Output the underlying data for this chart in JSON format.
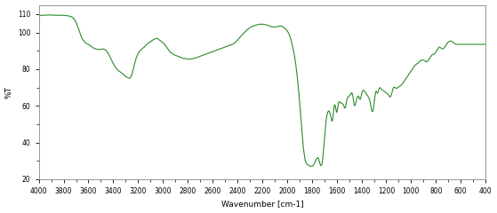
{
  "title": "",
  "xlabel": "Wavenumber [cm-1]",
  "ylabel": "%T",
  "xlim": [
    4000,
    400
  ],
  "ylim": [
    20,
    115
  ],
  "yticks": [
    20,
    40,
    60,
    80,
    100,
    110
  ],
  "xticks": [
    4000,
    3800,
    3600,
    3400,
    3200,
    3000,
    2800,
    2600,
    2400,
    2200,
    2000,
    1800,
    1600,
    1400,
    1200,
    1000,
    800,
    600,
    400
  ],
  "line_color": "#2a8a2a",
  "bg_color": "#ffffff",
  "linewidth": 0.8,
  "spectrum": [
    [
      4000,
      109.0
    ],
    [
      3990,
      109.2
    ],
    [
      3980,
      109.3
    ],
    [
      3970,
      109.4
    ],
    [
      3960,
      109.4
    ],
    [
      3950,
      109.5
    ],
    [
      3940,
      109.5
    ],
    [
      3930,
      109.5
    ],
    [
      3920,
      109.5
    ],
    [
      3910,
      109.5
    ],
    [
      3900,
      109.5
    ],
    [
      3890,
      109.5
    ],
    [
      3880,
      109.4
    ],
    [
      3870,
      109.4
    ],
    [
      3860,
      109.3
    ],
    [
      3850,
      109.3
    ],
    [
      3840,
      109.3
    ],
    [
      3830,
      109.4
    ],
    [
      3820,
      109.4
    ],
    [
      3810,
      109.4
    ],
    [
      3800,
      109.3
    ],
    [
      3790,
      109.3
    ],
    [
      3780,
      109.2
    ],
    [
      3770,
      109.1
    ],
    [
      3760,
      109.0
    ],
    [
      3750,
      108.9
    ],
    [
      3740,
      108.7
    ],
    [
      3730,
      108.3
    ],
    [
      3720,
      107.7
    ],
    [
      3710,
      106.8
    ],
    [
      3700,
      105.5
    ],
    [
      3690,
      104.0
    ],
    [
      3680,
      102.0
    ],
    [
      3670,
      100.0
    ],
    [
      3660,
      98.0
    ],
    [
      3650,
      96.5
    ],
    [
      3640,
      95.5
    ],
    [
      3630,
      94.8
    ],
    [
      3620,
      94.2
    ],
    [
      3610,
      93.8
    ],
    [
      3600,
      93.5
    ],
    [
      3590,
      93.0
    ],
    [
      3580,
      92.5
    ],
    [
      3570,
      92.0
    ],
    [
      3560,
      91.5
    ],
    [
      3550,
      91.2
    ],
    [
      3540,
      91.0
    ],
    [
      3530,
      90.8
    ],
    [
      3520,
      90.7
    ],
    [
      3510,
      90.7
    ],
    [
      3500,
      90.8
    ],
    [
      3490,
      91.0
    ],
    [
      3480,
      91.0
    ],
    [
      3470,
      90.8
    ],
    [
      3460,
      90.3
    ],
    [
      3450,
      89.5
    ],
    [
      3440,
      88.5
    ],
    [
      3430,
      87.2
    ],
    [
      3420,
      85.8
    ],
    [
      3410,
      84.3
    ],
    [
      3400,
      83.0
    ],
    [
      3390,
      81.8
    ],
    [
      3380,
      80.8
    ],
    [
      3370,
      80.0
    ],
    [
      3360,
      79.3
    ],
    [
      3350,
      78.8
    ],
    [
      3340,
      78.3
    ],
    [
      3330,
      77.8
    ],
    [
      3320,
      77.2
    ],
    [
      3310,
      76.6
    ],
    [
      3300,
      76.0
    ],
    [
      3290,
      75.6
    ],
    [
      3280,
      75.2
    ],
    [
      3270,
      75.0
    ],
    [
      3260,
      75.5
    ],
    [
      3250,
      77.0
    ],
    [
      3240,
      79.5
    ],
    [
      3230,
      82.5
    ],
    [
      3220,
      85.0
    ],
    [
      3210,
      87.0
    ],
    [
      3200,
      88.5
    ],
    [
      3190,
      89.5
    ],
    [
      3180,
      90.2
    ],
    [
      3170,
      91.0
    ],
    [
      3160,
      91.5
    ],
    [
      3150,
      92.0
    ],
    [
      3140,
      92.8
    ],
    [
      3130,
      93.5
    ],
    [
      3120,
      94.0
    ],
    [
      3110,
      94.5
    ],
    [
      3100,
      95.0
    ],
    [
      3090,
      95.5
    ],
    [
      3080,
      96.0
    ],
    [
      3070,
      96.3
    ],
    [
      3060,
      96.5
    ],
    [
      3050,
      96.8
    ],
    [
      3040,
      96.5
    ],
    [
      3030,
      96.0
    ],
    [
      3020,
      95.5
    ],
    [
      3010,
      95.0
    ],
    [
      3000,
      94.5
    ],
    [
      2990,
      93.8
    ],
    [
      2980,
      93.0
    ],
    [
      2970,
      92.0
    ],
    [
      2960,
      91.0
    ],
    [
      2950,
      90.0
    ],
    [
      2940,
      89.2
    ],
    [
      2930,
      88.7
    ],
    [
      2920,
      88.2
    ],
    [
      2910,
      87.8
    ],
    [
      2900,
      87.5
    ],
    [
      2890,
      87.3
    ],
    [
      2880,
      87.0
    ],
    [
      2870,
      86.8
    ],
    [
      2860,
      86.5
    ],
    [
      2850,
      86.3
    ],
    [
      2840,
      86.0
    ],
    [
      2830,
      85.8
    ],
    [
      2820,
      85.7
    ],
    [
      2810,
      85.6
    ],
    [
      2800,
      85.5
    ],
    [
      2790,
      85.5
    ],
    [
      2780,
      85.5
    ],
    [
      2770,
      85.6
    ],
    [
      2760,
      85.7
    ],
    [
      2750,
      85.8
    ],
    [
      2740,
      86.0
    ],
    [
      2730,
      86.2
    ],
    [
      2720,
      86.5
    ],
    [
      2710,
      86.8
    ],
    [
      2700,
      87.0
    ],
    [
      2690,
      87.3
    ],
    [
      2680,
      87.5
    ],
    [
      2670,
      87.8
    ],
    [
      2660,
      88.0
    ],
    [
      2650,
      88.3
    ],
    [
      2640,
      88.5
    ],
    [
      2630,
      88.8
    ],
    [
      2620,
      89.0
    ],
    [
      2610,
      89.3
    ],
    [
      2600,
      89.5
    ],
    [
      2590,
      89.8
    ],
    [
      2580,
      90.0
    ],
    [
      2570,
      90.3
    ],
    [
      2560,
      90.5
    ],
    [
      2550,
      90.8
    ],
    [
      2540,
      91.0
    ],
    [
      2530,
      91.3
    ],
    [
      2520,
      91.5
    ],
    [
      2510,
      91.8
    ],
    [
      2500,
      92.0
    ],
    [
      2490,
      92.3
    ],
    [
      2480,
      92.5
    ],
    [
      2470,
      92.8
    ],
    [
      2460,
      93.0
    ],
    [
      2450,
      93.3
    ],
    [
      2440,
      93.5
    ],
    [
      2430,
      93.8
    ],
    [
      2420,
      94.3
    ],
    [
      2410,
      95.0
    ],
    [
      2400,
      95.8
    ],
    [
      2390,
      96.5
    ],
    [
      2380,
      97.3
    ],
    [
      2370,
      98.0
    ],
    [
      2360,
      98.8
    ],
    [
      2350,
      99.5
    ],
    [
      2340,
      100.2
    ],
    [
      2330,
      100.8
    ],
    [
      2320,
      101.5
    ],
    [
      2310,
      102.0
    ],
    [
      2300,
      102.5
    ],
    [
      2290,
      103.0
    ],
    [
      2280,
      103.3
    ],
    [
      2270,
      103.5
    ],
    [
      2260,
      103.8
    ],
    [
      2250,
      104.0
    ],
    [
      2240,
      104.2
    ],
    [
      2230,
      104.3
    ],
    [
      2220,
      104.5
    ],
    [
      2210,
      104.5
    ],
    [
      2200,
      104.5
    ],
    [
      2190,
      104.5
    ],
    [
      2180,
      104.3
    ],
    [
      2170,
      104.2
    ],
    [
      2160,
      104.0
    ],
    [
      2150,
      103.8
    ],
    [
      2140,
      103.5
    ],
    [
      2130,
      103.3
    ],
    [
      2120,
      103.0
    ],
    [
      2110,
      103.0
    ],
    [
      2100,
      103.0
    ],
    [
      2090,
      103.0
    ],
    [
      2080,
      103.2
    ],
    [
      2070,
      103.3
    ],
    [
      2060,
      103.5
    ],
    [
      2050,
      103.5
    ],
    [
      2040,
      103.3
    ],
    [
      2030,
      103.0
    ],
    [
      2020,
      102.5
    ],
    [
      2010,
      101.8
    ],
    [
      2000,
      101.0
    ],
    [
      1990,
      100.0
    ],
    [
      1980,
      98.5
    ],
    [
      1970,
      96.5
    ],
    [
      1960,
      94.0
    ],
    [
      1950,
      91.0
    ],
    [
      1940,
      87.5
    ],
    [
      1930,
      83.0
    ],
    [
      1920,
      77.5
    ],
    [
      1910,
      71.0
    ],
    [
      1900,
      63.5
    ],
    [
      1890,
      55.0
    ],
    [
      1880,
      46.0
    ],
    [
      1870,
      38.0
    ],
    [
      1860,
      33.0
    ],
    [
      1855,
      30.5
    ],
    [
      1850,
      29.5
    ],
    [
      1845,
      28.8
    ],
    [
      1840,
      28.3
    ],
    [
      1835,
      28.0
    ],
    [
      1830,
      27.8
    ],
    [
      1825,
      27.5
    ],
    [
      1820,
      27.3
    ],
    [
      1815,
      27.2
    ],
    [
      1810,
      27.0
    ],
    [
      1805,
      27.0
    ],
    [
      1800,
      27.0
    ],
    [
      1795,
      27.2
    ],
    [
      1790,
      27.5
    ],
    [
      1785,
      28.0
    ],
    [
      1780,
      28.8
    ],
    [
      1775,
      30.0
    ],
    [
      1770,
      31.5
    ],
    [
      1765,
      33.5
    ],
    [
      1760,
      36.0
    ],
    [
      1755,
      39.0
    ],
    [
      1750,
      43.0
    ],
    [
      1745,
      47.0
    ],
    [
      1740,
      51.0
    ],
    [
      1735,
      55.0
    ],
    [
      1730,
      58.5
    ],
    [
      1725,
      61.5
    ],
    [
      1720,
      63.0
    ],
    [
      1715,
      63.5
    ],
    [
      1710,
      63.5
    ],
    [
      1705,
      63.0
    ],
    [
      1700,
      62.0
    ],
    [
      1695,
      61.0
    ],
    [
      1690,
      60.0
    ],
    [
      1685,
      59.5
    ],
    [
      1680,
      59.0
    ],
    [
      1675,
      58.5
    ],
    [
      1670,
      58.5
    ],
    [
      1665,
      58.5
    ],
    [
      1660,
      58.8
    ],
    [
      1655,
      59.0
    ],
    [
      1650,
      59.5
    ],
    [
      1645,
      60.0
    ],
    [
      1640,
      59.8
    ],
    [
      1635,
      59.5
    ],
    [
      1630,
      60.5
    ],
    [
      1625,
      62.0
    ],
    [
      1620,
      63.0
    ],
    [
      1615,
      63.0
    ],
    [
      1610,
      62.5
    ],
    [
      1605,
      62.0
    ],
    [
      1600,
      61.5
    ],
    [
      1595,
      61.5
    ],
    [
      1590,
      62.0
    ],
    [
      1585,
      62.5
    ],
    [
      1580,
      62.5
    ],
    [
      1575,
      62.0
    ],
    [
      1570,
      62.0
    ],
    [
      1565,
      61.5
    ],
    [
      1560,
      61.5
    ],
    [
      1555,
      61.5
    ],
    [
      1550,
      62.0
    ],
    [
      1545,
      62.5
    ],
    [
      1540,
      63.0
    ],
    [
      1535,
      63.5
    ],
    [
      1530,
      64.0
    ],
    [
      1525,
      64.5
    ],
    [
      1520,
      65.0
    ],
    [
      1515,
      65.0
    ],
    [
      1510,
      65.0
    ],
    [
      1505,
      65.0
    ],
    [
      1500,
      65.2
    ],
    [
      1495,
      65.5
    ],
    [
      1490,
      66.0
    ],
    [
      1485,
      66.8
    ],
    [
      1480,
      67.5
    ],
    [
      1475,
      67.8
    ],
    [
      1470,
      67.5
    ],
    [
      1465,
      67.0
    ],
    [
      1460,
      66.5
    ],
    [
      1455,
      66.0
    ],
    [
      1450,
      65.5
    ],
    [
      1445,
      65.0
    ],
    [
      1440,
      64.8
    ],
    [
      1435,
      65.0
    ],
    [
      1430,
      65.5
    ],
    [
      1425,
      66.0
    ],
    [
      1420,
      66.5
    ],
    [
      1415,
      67.0
    ],
    [
      1410,
      67.5
    ],
    [
      1405,
      67.8
    ],
    [
      1400,
      68.0
    ],
    [
      1395,
      68.2
    ],
    [
      1390,
      68.5
    ],
    [
      1385,
      68.5
    ],
    [
      1380,
      68.3
    ],
    [
      1375,
      68.0
    ],
    [
      1370,
      67.5
    ],
    [
      1365,
      67.0
    ],
    [
      1360,
      66.5
    ],
    [
      1355,
      66.0
    ],
    [
      1350,
      65.5
    ],
    [
      1345,
      65.0
    ],
    [
      1340,
      64.5
    ],
    [
      1335,
      64.0
    ],
    [
      1330,
      63.5
    ],
    [
      1325,
      63.0
    ],
    [
      1320,
      62.5
    ],
    [
      1315,
      62.5
    ],
    [
      1310,
      63.0
    ],
    [
      1305,
      63.5
    ],
    [
      1300,
      64.5
    ],
    [
      1295,
      66.0
    ],
    [
      1290,
      67.5
    ],
    [
      1285,
      69.0
    ],
    [
      1280,
      70.0
    ],
    [
      1275,
      70.5
    ],
    [
      1270,
      71.0
    ],
    [
      1265,
      71.0
    ],
    [
      1260,
      70.8
    ],
    [
      1255,
      70.5
    ],
    [
      1250,
      70.0
    ],
    [
      1245,
      69.5
    ],
    [
      1240,
      69.0
    ],
    [
      1235,
      68.8
    ],
    [
      1230,
      68.5
    ],
    [
      1225,
      68.3
    ],
    [
      1220,
      68.0
    ],
    [
      1215,
      67.8
    ],
    [
      1210,
      67.5
    ],
    [
      1205,
      67.3
    ],
    [
      1200,
      67.0
    ],
    [
      1195,
      67.0
    ],
    [
      1190,
      67.0
    ],
    [
      1185,
      67.2
    ],
    [
      1180,
      67.5
    ],
    [
      1175,
      68.0
    ],
    [
      1170,
      68.5
    ],
    [
      1165,
      69.0
    ],
    [
      1160,
      69.5
    ],
    [
      1155,
      70.0
    ],
    [
      1150,
      70.3
    ],
    [
      1145,
      70.5
    ],
    [
      1140,
      70.5
    ],
    [
      1135,
      70.3
    ],
    [
      1130,
      70.0
    ],
    [
      1125,
      69.8
    ],
    [
      1120,
      69.5
    ],
    [
      1115,
      69.5
    ],
    [
      1110,
      69.8
    ],
    [
      1105,
      70.0
    ],
    [
      1100,
      70.3
    ],
    [
      1095,
      70.5
    ],
    [
      1090,
      70.8
    ],
    [
      1085,
      71.0
    ],
    [
      1080,
      71.3
    ],
    [
      1075,
      71.5
    ],
    [
      1070,
      72.0
    ],
    [
      1065,
      72.5
    ],
    [
      1060,
      73.0
    ],
    [
      1055,
      73.5
    ],
    [
      1050,
      74.0
    ],
    [
      1045,
      74.5
    ],
    [
      1040,
      75.0
    ],
    [
      1035,
      75.5
    ],
    [
      1030,
      76.0
    ],
    [
      1025,
      76.5
    ],
    [
      1020,
      77.0
    ],
    [
      1015,
      77.5
    ],
    [
      1010,
      78.0
    ],
    [
      1005,
      78.5
    ],
    [
      1000,
      79.0
    ],
    [
      995,
      79.5
    ],
    [
      990,
      80.0
    ],
    [
      985,
      80.5
    ],
    [
      980,
      81.0
    ],
    [
      975,
      81.5
    ],
    [
      970,
      82.0
    ],
    [
      965,
      82.3
    ],
    [
      960,
      82.5
    ],
    [
      955,
      82.8
    ],
    [
      950,
      83.0
    ],
    [
      945,
      83.2
    ],
    [
      940,
      83.5
    ],
    [
      935,
      84.0
    ],
    [
      930,
      84.3
    ],
    [
      925,
      84.5
    ],
    [
      920,
      84.8
    ],
    [
      915,
      85.0
    ],
    [
      910,
      85.0
    ],
    [
      905,
      85.0
    ],
    [
      900,
      85.0
    ],
    [
      895,
      84.8
    ],
    [
      890,
      84.5
    ],
    [
      885,
      84.2
    ],
    [
      880,
      84.0
    ],
    [
      875,
      84.0
    ],
    [
      870,
      84.2
    ],
    [
      865,
      84.5
    ],
    [
      860,
      85.0
    ],
    [
      855,
      85.5
    ],
    [
      850,
      86.0
    ],
    [
      845,
      86.5
    ],
    [
      840,
      87.0
    ],
    [
      835,
      87.5
    ],
    [
      830,
      87.8
    ],
    [
      825,
      88.0
    ],
    [
      820,
      88.0
    ],
    [
      815,
      88.2
    ],
    [
      810,
      88.5
    ],
    [
      805,
      89.0
    ],
    [
      800,
      89.5
    ],
    [
      795,
      90.0
    ],
    [
      790,
      90.5
    ],
    [
      785,
      91.0
    ],
    [
      780,
      91.5
    ],
    [
      775,
      92.0
    ],
    [
      770,
      92.0
    ],
    [
      765,
      91.8
    ],
    [
      760,
      91.5
    ],
    [
      755,
      91.2
    ],
    [
      750,
      91.0
    ],
    [
      745,
      91.0
    ],
    [
      740,
      91.2
    ],
    [
      735,
      91.5
    ],
    [
      730,
      92.0
    ],
    [
      725,
      92.5
    ],
    [
      720,
      93.0
    ],
    [
      715,
      93.5
    ],
    [
      710,
      94.0
    ],
    [
      705,
      94.5
    ],
    [
      700,
      94.8
    ],
    [
      695,
      95.0
    ],
    [
      690,
      95.2
    ],
    [
      685,
      95.3
    ],
    [
      680,
      95.3
    ],
    [
      675,
      95.2
    ],
    [
      670,
      95.0
    ],
    [
      665,
      94.8
    ],
    [
      660,
      94.5
    ],
    [
      655,
      94.2
    ],
    [
      650,
      94.0
    ],
    [
      645,
      93.8
    ],
    [
      640,
      93.5
    ],
    [
      635,
      93.5
    ],
    [
      630,
      93.5
    ],
    [
      625,
      93.5
    ],
    [
      620,
      93.5
    ],
    [
      615,
      93.5
    ],
    [
      610,
      93.5
    ],
    [
      605,
      93.5
    ],
    [
      600,
      93.5
    ],
    [
      595,
      93.5
    ],
    [
      590,
      93.5
    ],
    [
      585,
      93.5
    ],
    [
      580,
      93.5
    ],
    [
      575,
      93.5
    ],
    [
      570,
      93.5
    ],
    [
      565,
      93.5
    ],
    [
      560,
      93.5
    ],
    [
      555,
      93.5
    ],
    [
      550,
      93.5
    ],
    [
      545,
      93.5
    ],
    [
      540,
      93.5
    ],
    [
      535,
      93.5
    ],
    [
      530,
      93.5
    ],
    [
      525,
      93.5
    ],
    [
      520,
      93.5
    ],
    [
      515,
      93.5
    ],
    [
      510,
      93.5
    ],
    [
      505,
      93.5
    ],
    [
      500,
      93.5
    ],
    [
      495,
      93.5
    ],
    [
      490,
      93.5
    ],
    [
      485,
      93.5
    ],
    [
      480,
      93.5
    ],
    [
      475,
      93.5
    ],
    [
      470,
      93.5
    ],
    [
      465,
      93.5
    ],
    [
      460,
      93.5
    ],
    [
      455,
      93.5
    ],
    [
      450,
      93.5
    ],
    [
      445,
      93.5
    ],
    [
      440,
      93.5
    ],
    [
      435,
      93.5
    ],
    [
      430,
      93.5
    ],
    [
      425,
      93.5
    ],
    [
      420,
      93.5
    ],
    [
      415,
      93.5
    ],
    [
      410,
      93.5
    ],
    [
      405,
      93.5
    ],
    [
      400,
      93.5
    ]
  ]
}
